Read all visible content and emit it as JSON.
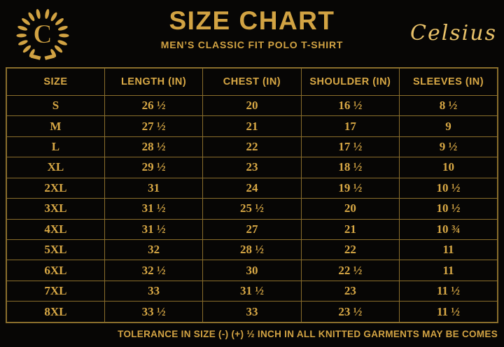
{
  "brand": {
    "logo_letter": "C",
    "wordmark": "Celsius"
  },
  "chart_data": {
    "type": "table",
    "title": "SIZE CHART",
    "subtitle": "MEN’S CLASSIC FIT POLO T-SHIRT",
    "columns": [
      "SIZE",
      "LENGTH (IN)",
      "CHEST (IN)",
      "SHOULDER (IN)",
      "SLEEVES (IN)"
    ],
    "rows": [
      [
        "S",
        "26 ½",
        "20",
        "16 ½",
        "8 ½"
      ],
      [
        "M",
        "27 ½",
        "21",
        "17",
        "9"
      ],
      [
        "L",
        "28 ½",
        "22",
        "17 ½",
        "9 ½"
      ],
      [
        "XL",
        "29 ½",
        "23",
        "18 ½",
        "10"
      ],
      [
        "2XL",
        "31",
        "24",
        "19 ½",
        "10 ½"
      ],
      [
        "3XL",
        "31 ½",
        "25 ½",
        "20",
        "10 ½"
      ],
      [
        "4XL",
        "31 ½",
        "27",
        "21",
        "10 ¾"
      ],
      [
        "5XL",
        "32",
        "28 ½",
        "22",
        "11"
      ],
      [
        "6XL",
        "32 ½",
        "30",
        "22 ½",
        "11"
      ],
      [
        "7XL",
        "33",
        "31 ½",
        "23",
        "11 ½"
      ],
      [
        "8XL",
        "33 ½",
        "33",
        "23 ½",
        "11 ½"
      ]
    ],
    "note": "TOLERANCE IN SIZE (-) (+) ½ INCH IN ALL KNITTED GARMENTS MAY BE COMES"
  },
  "colors": {
    "background": "#070605",
    "gold": "#D2A343",
    "gold_bright": "#E8C169",
    "table_border": "#8A6E2C",
    "table_text": "#D8A845"
  }
}
